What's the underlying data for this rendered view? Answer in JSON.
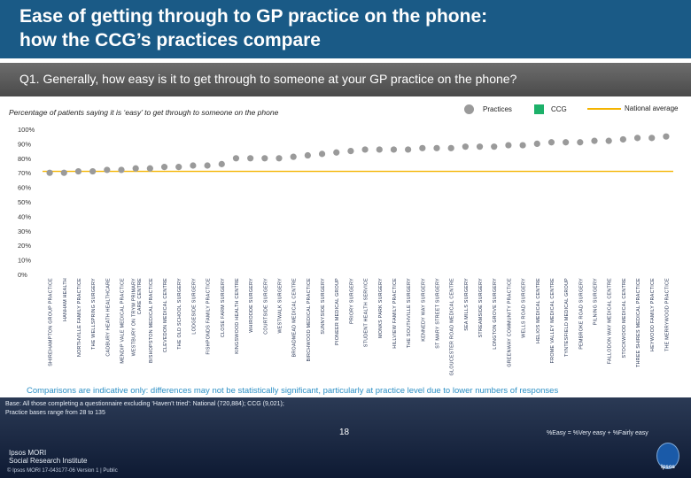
{
  "title": "Ease of getting through to GP practice on the phone:\nhow the CCG’s practices compare",
  "question": "Q1. Generally, how easy is it to get through to someone at your GP practice on the phone?",
  "subtitle": "Percentage of patients saying it is ‘easy’ to get through to someone on the phone",
  "legend": {
    "practices": "Practices",
    "ccg": "CCG",
    "national": "National average"
  },
  "colors": {
    "header": "#1a5a86",
    "marker": "#9a9a9a",
    "ccg": "#1db16a",
    "national": "#f4b400",
    "note": "#2b8fc5"
  },
  "chart_data": {
    "type": "scatter",
    "ylim": [
      0,
      100
    ],
    "yticks": [
      "0%",
      "10%",
      "20%",
      "30%",
      "40%",
      "50%",
      "60%",
      "70%",
      "80%",
      "90%",
      "100%"
    ],
    "national_average": 71,
    "categories": [
      "SHIREHAMPTON GROUP PRACTICE",
      "HANHAM HEALTH",
      "NORTHVILLE FAMILY PRACTICE",
      "THE WELLSPRING SURGERY",
      "CADBURY HEATH HEALTHCARE",
      "MENDIP VALE MEDICAL PRACTICE",
      "WESTBURY ON TRYM PRIMARY CARE CENTRE",
      "BISHOPSTON MEDICAL PRACTICE",
      "CLEVEDON MEDICAL CENTRE",
      "THE OLD SCHOOL SURGERY",
      "LODGESIDE SURGERY",
      "FISHPONDS FAMILY PRACTICE",
      "CLOSE FARM SURGERY",
      "KINGSWOOD HEALTH CENTRE",
      "WHIRODDE SURGERY",
      "COURTSIDE SURGERY",
      "WESTWALK SURGERY",
      "BROADMEAD MEDICAL CENTRE",
      "BIRCHWOOD MEDICAL PRACTICE",
      "SUNNYSIDE SURGERY",
      "PIONEER MEDICAL GROUP",
      "PRIORY SURGERY",
      "STUDENT HEALTH SERVICE",
      "MONKS PARK SURGERY",
      "HILLVIEW FAMILY PRACTICE",
      "THE SOUTHVILLE SURGERY",
      "KENNEDY WAY SURGERY",
      "ST MARY STREET SURGERY",
      "GLOUCESTER ROAD MEDICAL CENTRE",
      "SEA MILLS SURGERY",
      "STREAMSIDE SURGERY",
      "LONGTON GROVE SURGERY",
      "GREENWAY COMMUNITY PRACTICE",
      "WELLS ROAD SURGERY",
      "HELIOS MEDICAL CENTRE",
      "FROME VALLEY MEDICAL CENTRE",
      "TYNTESFIELD MEDICAL GROUP",
      "PEMBROKE ROAD SURGERY",
      "PILNING SURGERY",
      "FALLODON WAY MEDICAL CENTRE",
      "STOCKWOOD MEDICAL CENTRE",
      "THREE SHIRES MEDICAL PRACTICE",
      "HEYWOOD FAMILY PRACTICE",
      "THE MERRYWOOD PRACTICE"
    ],
    "values": [
      70,
      70,
      71,
      71,
      72,
      72,
      73,
      73,
      74,
      74,
      75,
      75,
      76,
      80,
      80,
      80,
      80,
      81,
      82,
      83,
      84,
      85,
      86,
      86,
      86,
      86,
      87,
      87,
      87,
      88,
      88,
      88,
      89,
      89,
      90,
      91,
      91,
      91,
      92,
      92,
      93,
      94,
      94,
      95
    ]
  },
  "note": "Comparisons are indicative only: differences may not be statistically significant, particularly at practice level due to lower numbers of responses",
  "footer": {
    "base": "Base: All those completing a questionnaire excluding ‘Haven’t tried’: National (720,884); CCG (9,021);\nPractice bases range from 28 to 135",
    "easy_note": "%Easy = %Very easy + %Fairly easy",
    "page": "18",
    "logo": "Ipsos MORI\nSocial Research Institute",
    "copyright": "© Ipsos MORI     17-043177-06 Version 1 | Public",
    "ipsos_logo": "Ipsos"
  }
}
